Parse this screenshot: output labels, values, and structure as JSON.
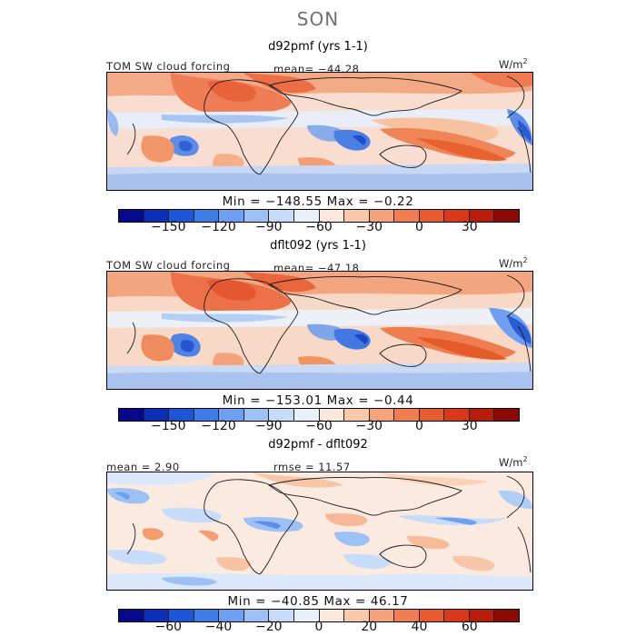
{
  "season": "SON",
  "colorbar_colors": [
    "#08088a",
    "#0b2fb8",
    "#1c55d6",
    "#3f7de6",
    "#6f9ff0",
    "#9dc1f5",
    "#c6dcf8",
    "#e8f0fb",
    "#fbe8dc",
    "#f9c8ab",
    "#f5a37b",
    "#f07e52",
    "#e85a30",
    "#d9371a",
    "#b81d0c",
    "#8c0a06"
  ],
  "panels": [
    {
      "title": "d92pmf (yrs 1-1)",
      "left_label": "TOM SW cloud forcing",
      "center_label": "mean= −44.28",
      "units": "W/m",
      "units_exp": "2",
      "minmax": "Min = −148.55 Max =  −0.22",
      "ticks": [
        {
          "label": "−150",
          "value": -150
        },
        {
          "label": "−120",
          "value": -120
        },
        {
          "label": "−90",
          "value": -90
        },
        {
          "label": "−60",
          "value": -60
        },
        {
          "label": "−30",
          "value": -30
        },
        {
          "label": "0",
          "value": 0
        },
        {
          "label": "30",
          "value": 30
        }
      ]
    },
    {
      "title": "dflt092 (yrs 1-1)",
      "left_label": "TOM SW cloud forcing",
      "center_label": "mean= −47.18",
      "units": "W/m",
      "units_exp": "2",
      "minmax": "Min = −153.01 Max =  −0.44",
      "ticks": [
        {
          "label": "−150",
          "value": -150
        },
        {
          "label": "−120",
          "value": -120
        },
        {
          "label": "−90",
          "value": -90
        },
        {
          "label": "−60",
          "value": -60
        },
        {
          "label": "−30",
          "value": -30
        },
        {
          "label": "0",
          "value": 0
        },
        {
          "label": "30",
          "value": 30
        }
      ]
    },
    {
      "title": "d92pmf - dflt092",
      "left_label": "mean =   2.90",
      "center_label": "rmse =  11.57",
      "units": "W/m",
      "units_exp": "2",
      "minmax": "Min = −40.85 Max =  46.17",
      "ticks": [
        {
          "label": "−60",
          "value": -60
        },
        {
          "label": "−40",
          "value": -40
        },
        {
          "label": "−20",
          "value": -20
        },
        {
          "label": "0",
          "value": 0
        },
        {
          "label": "20",
          "value": 20
        },
        {
          "label": "40",
          "value": 40
        },
        {
          "label": "60",
          "value": 60
        }
      ]
    }
  ]
}
